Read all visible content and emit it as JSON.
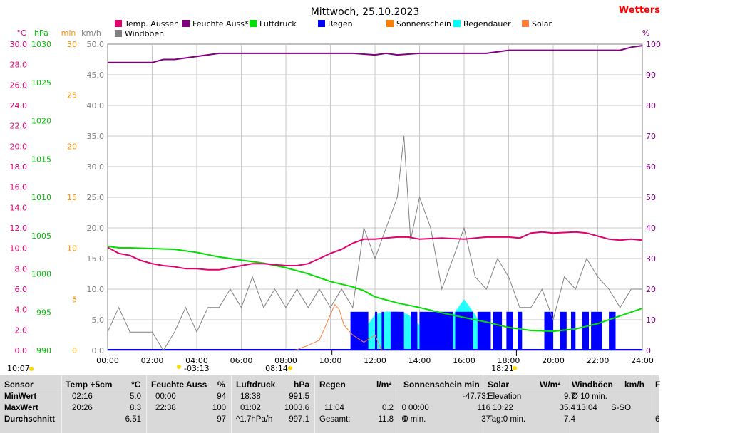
{
  "header": {
    "title": "Mittwoch, 25.10.2023",
    "brand": "Wetters",
    "brand_color": "#ff0000"
  },
  "legend": [
    {
      "label": "Temp. Aussen",
      "color": "#e0006e"
    },
    {
      "label": "Feuchte Auss*",
      "color": "#800080"
    },
    {
      "label": "Luftdruck",
      "color": "#00e000"
    },
    {
      "label": "Regen",
      "color": "#0000ff"
    },
    {
      "label": "Sonnenschein",
      "color": "#ff7f00"
    },
    {
      "label": "Regendauer",
      "color": "#00ffff"
    },
    {
      "label": "Solar",
      "color": "#ff8040"
    },
    {
      "label": "Windböen",
      "color": "#808080"
    }
  ],
  "axes": {
    "temp": {
      "unit": "°C",
      "color": "#e0006e",
      "ticks": [
        "30.0",
        "28.0",
        "26.0",
        "24.0",
        "22.0",
        "20.0",
        "18.0",
        "16.0",
        "14.0",
        "12.0",
        "10.0",
        "8.0",
        "6.0",
        "4.0",
        "2.0",
        "0.0"
      ]
    },
    "pressure": {
      "unit": "hPa",
      "color": "#00c000",
      "ticks": [
        "1030",
        "1025",
        "1020",
        "1015",
        "1010",
        "1005",
        "1000",
        "995",
        "990"
      ]
    },
    "minutes": {
      "unit": "min",
      "color": "#ff8c00",
      "ticks": [
        "30",
        "25",
        "20",
        "15",
        "10",
        "5",
        "0"
      ]
    },
    "wind": {
      "unit": "km/h",
      "color": "#808080",
      "ticks": [
        "50.0",
        "45.0",
        "40.0",
        "35.0",
        "30.0",
        "25.0",
        "20.0",
        "15.0",
        "10.0",
        "5.0",
        "0.0"
      ]
    },
    "humidity": {
      "unit": "%",
      "color": "#800080",
      "ticks": [
        "100",
        "90",
        "80",
        "70",
        "60",
        "50",
        "40",
        "30",
        "20",
        "10",
        "0"
      ]
    },
    "time_ticks": [
      "00:00",
      "02:00",
      "04:00",
      "06:00",
      "08:00",
      "10:00",
      "12:00",
      "14:00",
      "16:00",
      "18:00",
      "20:00",
      "22:00",
      "24:00"
    ]
  },
  "markers": [
    {
      "label": "10:07",
      "kind": "now"
    },
    {
      "label": "-03:13",
      "kind": "moonset"
    },
    {
      "label": "08:14",
      "kind": "sunrise"
    },
    {
      "label": "18:21",
      "kind": "sunset"
    }
  ],
  "chart_data": {
    "type": "line",
    "x_unit": "hours",
    "xlim": [
      0,
      24
    ],
    "series": [
      {
        "name": "Temp. Aussen",
        "axis": "temp",
        "color": "#e0006e",
        "x": [
          0,
          0.5,
          1,
          1.5,
          2,
          2.5,
          3,
          3.5,
          4,
          4.5,
          5,
          5.5,
          6,
          6.5,
          7,
          7.5,
          8,
          8.5,
          9,
          9.5,
          10,
          10.5,
          11,
          11.5,
          12,
          12.5,
          13,
          13.5,
          14,
          15,
          16,
          17,
          18,
          18.5,
          19,
          19.5,
          20,
          21,
          21.5,
          22,
          22.5,
          23,
          23.5,
          24
        ],
        "y": [
          10.1,
          9.5,
          9.3,
          8.8,
          8.5,
          8.3,
          8.2,
          8.0,
          8.0,
          7.9,
          7.9,
          8.1,
          8.3,
          8.5,
          8.5,
          8.4,
          8.3,
          8.3,
          8.5,
          9.0,
          9.5,
          9.9,
          10.5,
          10.9,
          10.9,
          11.0,
          11.1,
          11.1,
          10.9,
          11.0,
          10.9,
          11.1,
          11.1,
          11.0,
          11.5,
          11.6,
          11.5,
          11.6,
          11.5,
          11.2,
          10.9,
          10.8,
          10.9,
          10.8
        ]
      },
      {
        "name": "Feuchte Auss*",
        "axis": "humidity",
        "color": "#800080",
        "x": [
          0,
          1,
          2,
          2.5,
          3,
          4,
          5,
          6,
          7,
          8,
          9,
          10,
          11,
          12,
          12.5,
          13,
          14,
          15,
          16,
          17,
          18,
          19,
          20,
          21,
          22,
          23,
          23.5,
          24
        ],
        "y": [
          94,
          94,
          94,
          95,
          95,
          96,
          97,
          97,
          97,
          97,
          97,
          97,
          97,
          96.5,
          97,
          96.5,
          97,
          97,
          97,
          97,
          98,
          98,
          98,
          98,
          98,
          98,
          99,
          99.5
        ]
      },
      {
        "name": "Luftdruck",
        "axis": "pressure",
        "color": "#00e000",
        "x": [
          0,
          0.5,
          1,
          2,
          3,
          4,
          5,
          6,
          7,
          8,
          9,
          10,
          11,
          11.5,
          12,
          13,
          14,
          15,
          16,
          17,
          18,
          19,
          20,
          21,
          22,
          23,
          24
        ],
        "y": [
          1003.6,
          1003.4,
          1003.4,
          1003.3,
          1003.2,
          1002.8,
          1002.2,
          1001.8,
          1001.4,
          1000.8,
          1000.0,
          999.0,
          998.3,
          997.8,
          997.0,
          996.2,
          995.6,
          994.9,
          994.3,
          993.7,
          993.0,
          992.6,
          992.5,
          992.8,
          993.5,
          994.5,
          995.5
        ]
      },
      {
        "name": "Regen",
        "axis": "wind",
        "color": "#0000ff",
        "rain_minutes": [
          [
            10.9,
            11.7
          ],
          [
            12.0,
            12.1
          ],
          [
            12.3,
            12.4
          ],
          [
            12.7,
            13.3
          ],
          [
            13.6,
            13.9
          ],
          [
            14.0,
            15.5
          ],
          [
            15.6,
            16.4
          ],
          [
            16.6,
            17.2
          ],
          [
            17.3,
            17.7
          ],
          [
            17.9,
            18.2
          ],
          [
            18.4,
            18.6
          ],
          [
            19.6,
            20.0
          ],
          [
            20.3,
            20.6
          ],
          [
            20.8,
            21.0
          ],
          [
            21.3,
            21.6
          ],
          [
            21.7,
            22.2
          ],
          [
            22.5,
            22.8
          ]
        ],
        "rain_level_kmh": 6.3
      },
      {
        "name": "Regendauer",
        "axis": "minutes",
        "color": "#00ffff",
        "x": [
          10.9,
          11,
          11.5,
          12,
          12.5,
          13,
          13.5,
          14,
          14.5,
          15,
          15.5,
          16,
          16.5,
          17,
          17.2
        ],
        "y": [
          0,
          2,
          2,
          3.5,
          3.8,
          3.8,
          3.5,
          2.5,
          2.5,
          2.5,
          3.5,
          5,
          3.5,
          1.5,
          0
        ]
      },
      {
        "name": "Solar",
        "axis": "minutes",
        "color": "#ff8040",
        "x": [
          8.4,
          9,
          9.5,
          10,
          10.2,
          10.4,
          10.6,
          11,
          11.5,
          12,
          12.3
        ],
        "y": [
          0,
          0.5,
          1,
          3.5,
          4.5,
          4,
          2.5,
          1.5,
          0.8,
          1.5,
          0
        ]
      },
      {
        "name": "Windböen",
        "axis": "wind",
        "color": "#808080",
        "x": [
          0,
          0.5,
          1,
          1.5,
          2,
          2.5,
          3,
          3.5,
          4,
          4.5,
          5,
          5.5,
          6,
          6.5,
          7,
          7.5,
          8,
          8.5,
          9,
          9.5,
          10,
          10.5,
          11,
          11.5,
          12,
          12.5,
          13,
          13.3,
          13.6,
          14,
          14.5,
          15,
          15.5,
          16,
          16.5,
          17,
          17.5,
          18,
          18.5,
          19,
          19.5,
          20,
          20.5,
          21,
          21.5,
          22,
          22.5,
          23,
          23.5,
          24
        ],
        "y": [
          3,
          7,
          3,
          3,
          3,
          0,
          3,
          7,
          3,
          7,
          7,
          10,
          7,
          12,
          7,
          10,
          7,
          10,
          7,
          10,
          7,
          10,
          7,
          20,
          15,
          20,
          25,
          35,
          18,
          25,
          20,
          10,
          15,
          20,
          12,
          10,
          15,
          12,
          7,
          7,
          10,
          5,
          12,
          10,
          15,
          12,
          10,
          7,
          10,
          10
        ]
      }
    ]
  },
  "stats": {
    "headers": {
      "sensor": "Sensor",
      "temp": "Temp +5cm",
      "temp_unit": "°C",
      "hum": "Feuchte Auss",
      "hum_unit": "%",
      "press": "Luftdruck",
      "press_unit": "hPa",
      "rain": "Regen",
      "rain_unit": "l/m²",
      "sun": "Sonnenschein min",
      "solar": "Solar",
      "solar_unit": "W/m²",
      "wind": "Windböen",
      "wind_unit": "km/h",
      "extra": "F"
    },
    "rows": {
      "min_label": "MinWert",
      "max_label": "MaxWert",
      "avg_label": "Durchschnitt"
    },
    "temp": {
      "min_time": "02:16",
      "min": "5.0",
      "max_time": "20:26",
      "max": "8.3",
      "avg": "6.51"
    },
    "hum": {
      "min_time": "00:00",
      "min": "94",
      "max_time": "22:38",
      "max": "100",
      "avg": "97"
    },
    "press": {
      "min_time": "18:38",
      "min": "991.5",
      "max_time": "01:02",
      "max": "1003.6",
      "avg_label": "^1.7hPa/h",
      "avg": "997.1"
    },
    "rain": {
      "max_time": "11:04",
      "max": "0.2",
      "avg_label": "Gesamt:",
      "avg": "11.8"
    },
    "sun": {
      "max_time": "00:00",
      "max": "0",
      "avg_label": "0 min.",
      "avg": "0"
    },
    "solar": {
      "min_label": "Elevation",
      "min": "-47.731",
      "max_time": "10:22",
      "max": "116",
      "avg_label": "Tag:0 min.",
      "avg": "37"
    },
    "wind": {
      "min_label": "Ø 10 min.",
      "min": "9.7",
      "max_time": "13:04",
      "max_dir": "S-SO",
      "max": "35.4",
      "avg": "7.4"
    },
    "extra": {
      "avg": "6"
    }
  }
}
